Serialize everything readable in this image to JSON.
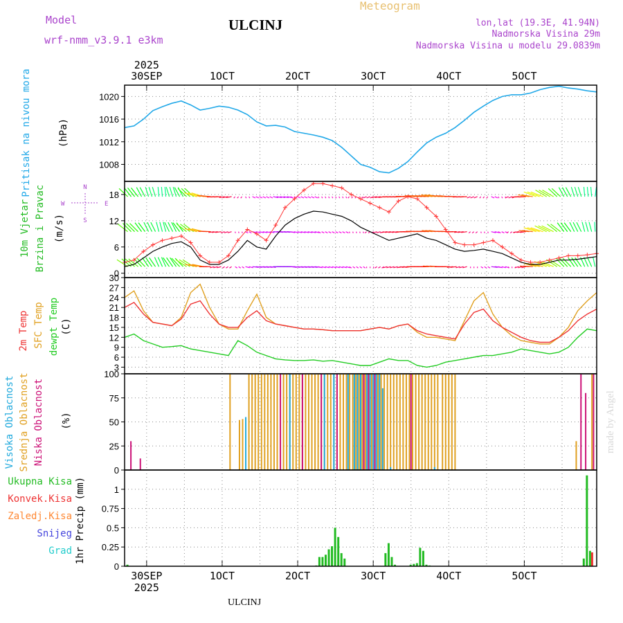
{
  "header": {
    "model_label": "Model",
    "model_name": "wrf-nmm_v3.9.1 e3km",
    "station": "ULCINJ",
    "product": "Meteogram",
    "coords": "lon,lat (19.3E, 41.94N)",
    "elevation": "Nadmorska Visina 29m",
    "model_elevation": "Nadmorska Visina u modelu 29.0839m",
    "footer_station": "ULCINJ",
    "watermark": "made by Angel"
  },
  "colors": {
    "pressure": "#20a8e8",
    "wind_speed": "#000000",
    "gust": "#ff3333",
    "temp_2m": "#ee3333",
    "temp_sfc": "#e0a020",
    "dewpoint": "#22cc22",
    "cloud_high": "#22aadd",
    "cloud_mid": "#e0a020",
    "cloud_low": "#cc1177",
    "precip_total": "#22bb22",
    "precip_conv": "#ee3333",
    "precip_frozen": "#ff8833",
    "snow": "#4444dd",
    "hail": "#22cccc",
    "title_purple": "#aa44cc",
    "title_gold": "#e8c070",
    "grid": "#888888"
  },
  "time_axis": {
    "range_hours": [
      -62,
      238
    ],
    "top_ticks": [
      {
        "h": -48,
        "label": "30SEP",
        "year": "2025"
      },
      {
        "h": 0,
        "label": "1OCT"
      },
      {
        "h": 48,
        "label": "2OCT"
      },
      {
        "h": 96,
        "label": "3OCT"
      },
      {
        "h": 144,
        "label": "4OCT"
      },
      {
        "h": 192,
        "label": "5OCT"
      }
    ],
    "bottom_ticks": [
      {
        "h": -48,
        "label": "30SEP",
        "year": "2025"
      },
      {
        "h": 0,
        "label": "1OCT"
      },
      {
        "h": 48,
        "label": "2OCT"
      },
      {
        "h": 96,
        "label": "3OCT"
      },
      {
        "h": 144,
        "label": "4OCT"
      },
      {
        "h": 192,
        "label": "5OCT"
      }
    ]
  },
  "chart_data": [
    {
      "type": "line",
      "panel": "pressure",
      "title": "Pritisak na nivou mora",
      "ylabel": "(hPa)",
      "ylim": [
        1005,
        1022
      ],
      "yticks": [
        1008,
        1012,
        1016,
        1020
      ],
      "x": [
        -62,
        -56,
        -50,
        -44,
        -38,
        -32,
        -26,
        -20,
        -14,
        -8,
        -2,
        4,
        10,
        16,
        22,
        28,
        34,
        40,
        46,
        52,
        58,
        64,
        70,
        76,
        82,
        88,
        94,
        100,
        106,
        112,
        118,
        124,
        130,
        136,
        142,
        148,
        154,
        160,
        166,
        172,
        178,
        184,
        190,
        196,
        202,
        208,
        214,
        220,
        226,
        232,
        238
      ],
      "series": [
        {
          "name": "MSLP",
          "values": [
            1014.5,
            1014.8,
            1016.0,
            1017.5,
            1018.2,
            1018.8,
            1019.2,
            1018.5,
            1017.6,
            1017.9,
            1018.3,
            1018.1,
            1017.6,
            1016.8,
            1015.5,
            1014.8,
            1014.9,
            1014.6,
            1013.8,
            1013.5,
            1013.2,
            1012.8,
            1012.2,
            1011.0,
            1009.5,
            1008.0,
            1007.5,
            1006.7,
            1006.5,
            1007.3,
            1008.5,
            1010.2,
            1011.8,
            1012.8,
            1013.5,
            1014.5,
            1015.8,
            1017.2,
            1018.3,
            1019.3,
            1020.0,
            1020.3,
            1020.3,
            1020.6,
            1021.2,
            1021.6,
            1021.8,
            1021.5,
            1021.3,
            1021.0,
            1020.8
          ]
        }
      ]
    },
    {
      "type": "line",
      "panel": "wind",
      "title": "10m Vjetar",
      "title2": "Brzina i Pravac",
      "ylabel": "(m/s)",
      "ylim": [
        -1,
        21
      ],
      "yticks": [
        0,
        6,
        12,
        18
      ],
      "compass": {
        "n": "N",
        "s": "S",
        "e": "E",
        "w": "W"
      },
      "x": [
        -62,
        -56,
        -50,
        -44,
        -38,
        -32,
        -26,
        -20,
        -14,
        -8,
        -2,
        4,
        10,
        16,
        22,
        28,
        34,
        40,
        46,
        52,
        58,
        64,
        70,
        76,
        82,
        88,
        94,
        100,
        106,
        112,
        118,
        124,
        130,
        136,
        142,
        148,
        154,
        160,
        166,
        172,
        178,
        184,
        190,
        196,
        202,
        208,
        214,
        220,
        226,
        232,
        238
      ],
      "series": [
        {
          "name": "Brzina",
          "values": [
            1.5,
            2.0,
            3.5,
            5.0,
            6.0,
            6.8,
            7.2,
            6.0,
            3.0,
            2.0,
            2.0,
            3.0,
            5.0,
            7.5,
            6.0,
            5.5,
            8.5,
            11.0,
            12.5,
            13.5,
            14.2,
            14.0,
            13.5,
            13.0,
            12.0,
            10.5,
            9.5,
            8.5,
            7.5,
            8.0,
            8.5,
            9.0,
            8.0,
            7.5,
            6.5,
            5.5,
            5.0,
            5.2,
            5.5,
            5.0,
            4.5,
            3.5,
            2.5,
            2.0,
            2.0,
            2.5,
            3.0,
            3.0,
            3.2,
            3.5,
            3.8
          ]
        },
        {
          "name": "Udari",
          "values": [
            2.5,
            3.0,
            5.0,
            6.5,
            7.5,
            8.0,
            8.5,
            7.0,
            4.0,
            2.5,
            2.5,
            4.0,
            7.5,
            10.0,
            9.0,
            7.5,
            11.0,
            15.0,
            17.0,
            19.0,
            20.5,
            20.5,
            20.0,
            19.5,
            18.0,
            17.0,
            16.0,
            15.0,
            14.0,
            16.5,
            17.5,
            17.0,
            15.0,
            13.0,
            10.0,
            7.0,
            6.5,
            6.5,
            7.0,
            7.5,
            6.0,
            4.5,
            3.0,
            2.5,
            2.5,
            3.0,
            3.5,
            4.0,
            4.0,
            4.2,
            4.5
          ]
        }
      ],
      "directions_deg": [
        300,
        310,
        320,
        330,
        340,
        330,
        320,
        300,
        250,
        220,
        200,
        190,
        170,
        160,
        150,
        150,
        140,
        140,
        150,
        150,
        150,
        160,
        160,
        160,
        170,
        170,
        180,
        190,
        200,
        200,
        210,
        220,
        220,
        230,
        220,
        210,
        200,
        180,
        170,
        150,
        160,
        180,
        200,
        230,
        260,
        280,
        300,
        320,
        330,
        340,
        350
      ]
    },
    {
      "type": "line",
      "panel": "temperature",
      "title": "2m Temp",
      "title2": "SFC Temp",
      "title3": "dewpt Temp",
      "ylabel": "(C)",
      "ylim": [
        1,
        30
      ],
      "yticks": [
        3,
        6,
        9,
        12,
        15,
        18,
        21,
        24,
        27,
        30
      ],
      "x": [
        -62,
        -56,
        -50,
        -44,
        -38,
        -32,
        -26,
        -20,
        -14,
        -8,
        -2,
        4,
        10,
        16,
        22,
        28,
        34,
        40,
        46,
        52,
        58,
        64,
        70,
        76,
        82,
        88,
        94,
        100,
        106,
        112,
        118,
        124,
        130,
        136,
        142,
        148,
        154,
        160,
        166,
        172,
        178,
        184,
        190,
        196,
        202,
        208,
        214,
        220,
        226,
        232,
        238
      ],
      "series": [
        {
          "name": "2m Temp",
          "values": [
            21,
            22.5,
            19,
            16.5,
            16,
            15.5,
            17.5,
            22,
            23,
            19,
            16,
            15,
            15,
            18,
            20,
            17,
            16,
            15.5,
            15,
            14.5,
            14.5,
            14.3,
            14,
            14,
            14,
            14,
            14.5,
            15,
            14.5,
            15.5,
            16,
            14,
            13,
            12.5,
            12,
            11.5,
            16,
            19.5,
            20.5,
            17,
            15,
            13.5,
            12,
            11,
            10.5,
            10.5,
            12,
            14,
            17,
            19,
            20.5
          ]
        },
        {
          "name": "SFC Temp",
          "values": [
            24,
            26,
            20,
            16.5,
            16,
            15.5,
            18,
            25.5,
            28,
            21,
            16,
            14.5,
            14.5,
            20,
            25,
            18,
            16,
            15.5,
            15,
            14.5,
            14.5,
            14.3,
            14,
            14,
            14,
            14,
            14.5,
            15,
            14.5,
            15.5,
            16,
            13.5,
            12,
            12,
            11.5,
            11,
            17,
            23,
            25.5,
            19,
            15,
            12.5,
            11,
            10.5,
            10,
            10,
            12,
            15,
            20,
            23,
            25.5
          ]
        },
        {
          "name": "dewpt Temp",
          "values": [
            12,
            13,
            11,
            10,
            9,
            9.2,
            9.5,
            8.5,
            8,
            7.5,
            7,
            6.5,
            11,
            9.5,
            7.5,
            6.5,
            5.5,
            5.2,
            5,
            5,
            5.2,
            4.8,
            5,
            4.5,
            4,
            3.5,
            3.5,
            4.5,
            5.5,
            5,
            5,
            3.5,
            3,
            3.5,
            4.5,
            5,
            5.5,
            6,
            6.5,
            6.5,
            7,
            7.5,
            8.5,
            8,
            7.5,
            7,
            7.5,
            9,
            12,
            14.5,
            14
          ]
        }
      ]
    },
    {
      "type": "bar",
      "panel": "cloud",
      "title": "Visoka Oblacnost",
      "title2": "Srednja Oblacnost",
      "title3": "Niska Oblacnost",
      "ylabel": "(%)",
      "ylim": [
        0,
        100
      ],
      "yticks": [
        0,
        25,
        50,
        75,
        100
      ],
      "series": [
        {
          "name": "Visoka",
          "x": [
            15,
            43,
            65,
            71,
            80,
            84,
            86,
            88,
            90,
            92,
            94,
            96,
            98,
            100,
            102,
            107,
            135
          ],
          "values": [
            55,
            100,
            100,
            100,
            100,
            100,
            100,
            100,
            100,
            100,
            100,
            100,
            100,
            100,
            85,
            3,
            3
          ]
        },
        {
          "name": "Srednja",
          "x": [
            5,
            11,
            13,
            17,
            19,
            21,
            23,
            25,
            27,
            29,
            31,
            33,
            35,
            37,
            39,
            41,
            43,
            45,
            47,
            49,
            51,
            53,
            55,
            57,
            59,
            61,
            63,
            65,
            67,
            69,
            71,
            73,
            75,
            77,
            79,
            81,
            83,
            85,
            87,
            89,
            91,
            93,
            95,
            97,
            99,
            101,
            103,
            105,
            107,
            109,
            111,
            113,
            115,
            117,
            119,
            121,
            123,
            125,
            127,
            129,
            131,
            133,
            135,
            137,
            140,
            142,
            144,
            146,
            148,
            225,
            235
          ],
          "values": [
            100,
            52,
            53,
            100,
            100,
            100,
            100,
            100,
            100,
            100,
            100,
            100,
            100,
            100,
            100,
            100,
            100,
            100,
            100,
            100,
            100,
            100,
            100,
            100,
            100,
            100,
            100,
            100,
            100,
            100,
            100,
            100,
            100,
            100,
            100,
            100,
            100,
            100,
            100,
            100,
            100,
            100,
            100,
            100,
            100,
            100,
            100,
            100,
            100,
            100,
            100,
            100,
            100,
            100,
            100,
            100,
            100,
            100,
            100,
            100,
            100,
            100,
            100,
            100,
            100,
            100,
            100,
            100,
            100,
            30,
            100
          ]
        },
        {
          "name": "Niska",
          "x": [
            -58,
            -52,
            37,
            51,
            63,
            73,
            90,
            93,
            97,
            120,
            228,
            231,
            236
          ],
          "values": [
            30,
            12,
            100,
            100,
            100,
            100,
            100,
            100,
            100,
            100,
            100,
            80,
            100
          ]
        }
      ]
    },
    {
      "type": "bar",
      "panel": "precip",
      "title": "1hr Precip",
      "ylabel": "(mm)",
      "ylim": [
        0,
        1.25
      ],
      "yticks": [
        0,
        0.25,
        0.5,
        0.75,
        1
      ],
      "legend": [
        "Ukupna Kisa",
        "Konvek.Kisa",
        "Zaledj.Kisa",
        "Snijeg",
        "Grad"
      ],
      "series": [
        {
          "name": "Ukupna Kisa",
          "x": [
            -60,
            60,
            62,
            64,
            66,
            68,
            70,
            72,
            74,
            76,
            78,
            104,
            106,
            108,
            110,
            120,
            122,
            124,
            126,
            128,
            130,
            132,
            230,
            232,
            234
          ],
          "values": [
            0.02,
            0.01,
            0.12,
            0.12,
            0.15,
            0.22,
            0.26,
            0.5,
            0.38,
            0.17,
            0.1,
            0.17,
            0.3,
            0.12,
            0.02,
            0.02,
            0.03,
            0.04,
            0.24,
            0.2,
            0.02,
            0.01,
            0.1,
            1.18,
            0.2
          ]
        },
        {
          "name": "Konvek.Kisa",
          "x": [
            234
          ],
          "values": [
            0.18
          ]
        }
      ]
    }
  ]
}
